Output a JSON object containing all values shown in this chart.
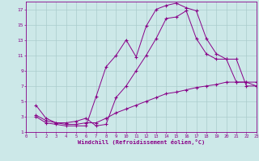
{
  "xlabel": "Windchill (Refroidissement éolien,°C)",
  "bg_color": "#cce8e8",
  "grid_color": "#aacccc",
  "line_color": "#880088",
  "xlim": [
    0,
    23
  ],
  "ylim": [
    1,
    18
  ],
  "xticks": [
    0,
    1,
    2,
    3,
    4,
    5,
    6,
    7,
    8,
    9,
    10,
    11,
    12,
    13,
    14,
    15,
    16,
    17,
    18,
    19,
    20,
    21,
    22,
    23
  ],
  "yticks": [
    1,
    3,
    5,
    7,
    9,
    11,
    13,
    15,
    17
  ],
  "line1_x": [
    1,
    2,
    3,
    4,
    5,
    6,
    7,
    8,
    9,
    10,
    11,
    12,
    13,
    14,
    15,
    16,
    17,
    18,
    19,
    20,
    21,
    22,
    23
  ],
  "line1_y": [
    3.0,
    2.2,
    2.0,
    1.8,
    1.8,
    1.8,
    5.6,
    9.5,
    11.0,
    13.0,
    10.8,
    14.8,
    17.0,
    17.5,
    17.8,
    17.2,
    16.8,
    13.2,
    11.2,
    10.5,
    10.5,
    7.0,
    7.0
  ],
  "line2_x": [
    1,
    2,
    3,
    4,
    5,
    6,
    7,
    8,
    9,
    10,
    11,
    12,
    13,
    14,
    15,
    16,
    17,
    18,
    19,
    20,
    21,
    22,
    23
  ],
  "line2_y": [
    4.5,
    2.8,
    2.2,
    2.2,
    2.4,
    2.8,
    1.8,
    2.0,
    5.5,
    7.0,
    9.0,
    11.0,
    13.2,
    15.8,
    16.0,
    16.8,
    13.2,
    11.2,
    10.5,
    10.5,
    7.5,
    7.5,
    7.5
  ],
  "line3_x": [
    1,
    2,
    3,
    4,
    5,
    6,
    7,
    8,
    9,
    10,
    11,
    12,
    13,
    14,
    15,
    16,
    17,
    18,
    19,
    20,
    21,
    22,
    23
  ],
  "line3_y": [
    3.2,
    2.5,
    2.2,
    2.0,
    2.0,
    2.2,
    2.2,
    2.8,
    3.5,
    4.0,
    4.5,
    5.0,
    5.5,
    6.0,
    6.2,
    6.5,
    6.8,
    7.0,
    7.2,
    7.5,
    7.5,
    7.5,
    7.0
  ]
}
